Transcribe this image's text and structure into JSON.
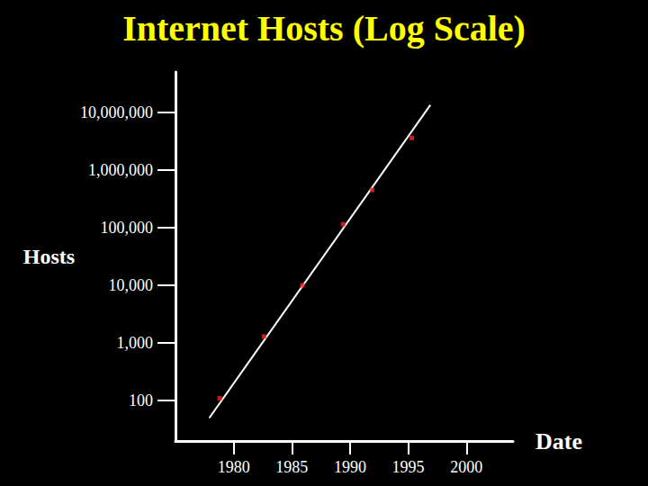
{
  "chart_data": {
    "type": "scatter",
    "title": "Internet Hosts (Log Scale)",
    "xlabel": "Date",
    "ylabel": "Hosts",
    "log": "y",
    "xlim": [
      1975,
      2004
    ],
    "xticks": [
      1980,
      1985,
      1990,
      1995,
      2000
    ],
    "ylim": [
      20,
      50000000
    ],
    "yticks": [
      100,
      {
        "value": 1000,
        "label": "1,000"
      },
      {
        "value": 10000,
        "label": "10,000"
      },
      {
        "value": 100000,
        "label": "100,000"
      },
      {
        "value": 1000000,
        "label": "1,000,000"
      },
      {
        "value": 10000000,
        "label": "10,000,000"
      }
    ],
    "grid": false,
    "series": [
      {
        "type": "scatter",
        "color": "#ff2020",
        "marker": "square",
        "x": [
          1978.8,
          1982.6,
          1985.9,
          1989.4,
          1991.9,
          1995.3
        ],
        "values": [
          110,
          1300,
          10000,
          115000,
          450000,
          3600000
        ]
      },
      {
        "type": "line",
        "color": "#ffffff",
        "line_style": "solid",
        "x": [
          1977.9,
          1996.9
        ],
        "values": [
          50,
          13400000
        ]
      }
    ]
  }
}
